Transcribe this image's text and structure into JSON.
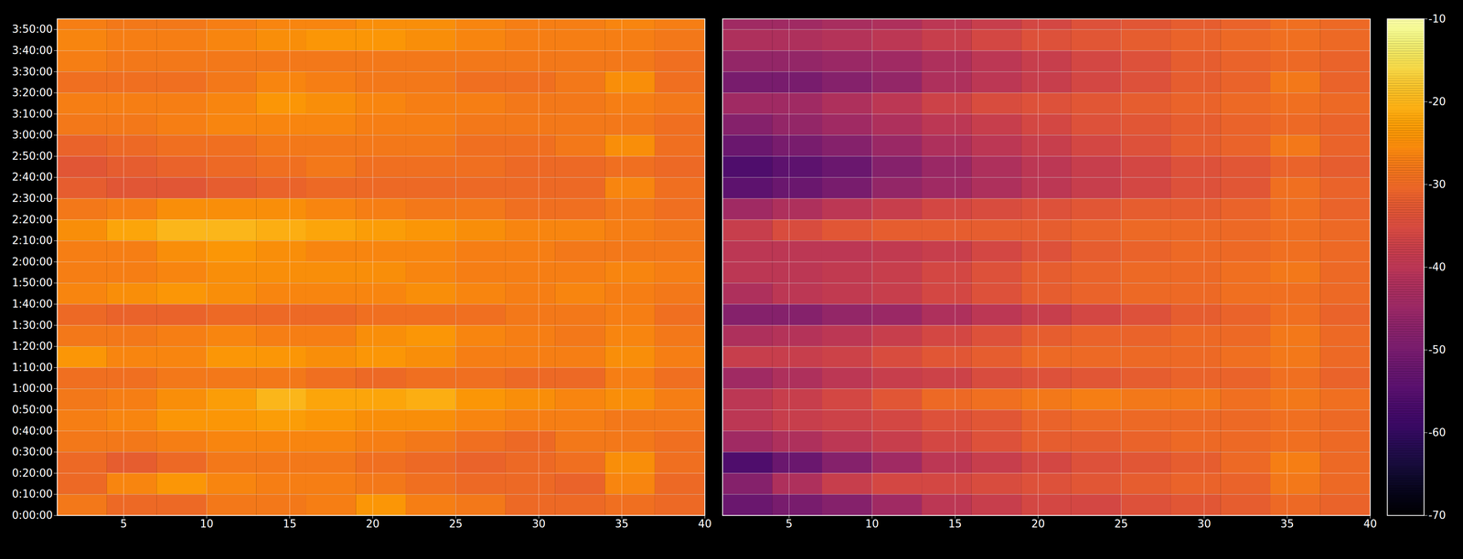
{
  "chart_data": {
    "type": "heatmap",
    "grid": true,
    "xlim": [
      1,
      40
    ],
    "xticks": [
      5,
      10,
      15,
      20,
      25,
      30,
      35,
      40
    ],
    "ylim": [
      0,
      14100
    ],
    "yticks": [
      {
        "value": 0,
        "label": "0:00:00"
      },
      {
        "value": 600,
        "label": "0:10:00"
      },
      {
        "value": 1200,
        "label": "0:20:00"
      },
      {
        "value": 1800,
        "label": "0:30:00"
      },
      {
        "value": 2400,
        "label": "0:40:00"
      },
      {
        "value": 3000,
        "label": "0:50:00"
      },
      {
        "value": 3600,
        "label": "1:00:00"
      },
      {
        "value": 4200,
        "label": "1:10:00"
      },
      {
        "value": 4800,
        "label": "1:20:00"
      },
      {
        "value": 5400,
        "label": "1:30:00"
      },
      {
        "value": 6000,
        "label": "1:40:00"
      },
      {
        "value": 6600,
        "label": "1:50:00"
      },
      {
        "value": 7200,
        "label": "2:00:00"
      },
      {
        "value": 7800,
        "label": "2:10:00"
      },
      {
        "value": 8400,
        "label": "2:20:00"
      },
      {
        "value": 9000,
        "label": "2:30:00"
      },
      {
        "value": 9600,
        "label": "2:40:00"
      },
      {
        "value": 10200,
        "label": "2:50:00"
      },
      {
        "value": 10800,
        "label": "3:00:00"
      },
      {
        "value": 11400,
        "label": "3:10:00"
      },
      {
        "value": 12000,
        "label": "3:20:00"
      },
      {
        "value": 12600,
        "label": "3:30:00"
      },
      {
        "value": 13200,
        "label": "3:40:00"
      },
      {
        "value": 13800,
        "label": "3:50:00"
      }
    ],
    "x_edges": [
      1,
      4,
      7,
      10,
      13,
      16,
      19,
      22,
      25,
      28,
      31,
      34,
      37,
      40
    ],
    "y_edges": [
      0,
      600,
      1200,
      1800,
      2400,
      3000,
      3600,
      4200,
      4800,
      5400,
      6000,
      6600,
      7200,
      7800,
      8400,
      9000,
      9600,
      10200,
      10800,
      11400,
      12000,
      12600,
      13200,
      13800,
      14100
    ],
    "colorbar": {
      "range": [
        -70,
        -10
      ],
      "ticks": [
        -70,
        -60,
        -50,
        -40,
        -30,
        -20,
        -10
      ]
    },
    "panels": [
      {
        "cells": [
          [
            -28,
            -30,
            -30,
            -28,
            -28,
            -27,
            -24,
            -27,
            -28,
            -30,
            -30,
            -29,
            -30
          ],
          [
            -30,
            -26,
            -24,
            -26,
            -27,
            -27,
            -28,
            -29,
            -30,
            -30,
            -31,
            -26,
            -30
          ],
          [
            -30,
            -32,
            -30,
            -28,
            -28,
            -28,
            -29,
            -30,
            -31,
            -30,
            -29,
            -25,
            -29
          ],
          [
            -28,
            -28,
            -27,
            -26,
            -26,
            -26,
            -27,
            -28,
            -29,
            -30,
            -28,
            -28,
            -29
          ],
          [
            -27,
            -26,
            -24,
            -24,
            -23,
            -24,
            -25,
            -25,
            -26,
            -27,
            -27,
            -28,
            -28
          ],
          [
            -28,
            -27,
            -25,
            -23,
            -20,
            -22,
            -22,
            -21,
            -24,
            -25,
            -26,
            -25,
            -27
          ],
          [
            -29,
            -29,
            -28,
            -28,
            -28,
            -29,
            -30,
            -29,
            -29,
            -30,
            -30,
            -27,
            -29
          ],
          [
            -24,
            -26,
            -26,
            -24,
            -24,
            -25,
            -24,
            -25,
            -27,
            -27,
            -27,
            -25,
            -27
          ],
          [
            -28,
            -28,
            -27,
            -26,
            -27,
            -27,
            -25,
            -24,
            -26,
            -27,
            -28,
            -26,
            -28
          ],
          [
            -30,
            -31,
            -31,
            -30,
            -30,
            -30,
            -29,
            -29,
            -29,
            -28,
            -28,
            -27,
            -29
          ],
          [
            -26,
            -25,
            -24,
            -25,
            -26,
            -26,
            -26,
            -25,
            -26,
            -27,
            -26,
            -27,
            -28
          ],
          [
            -27,
            -27,
            -26,
            -25,
            -25,
            -25,
            -25,
            -26,
            -27,
            -27,
            -27,
            -26,
            -27
          ],
          [
            -27,
            -27,
            -25,
            -24,
            -25,
            -26,
            -26,
            -26,
            -27,
            -27,
            -28,
            -28,
            -28
          ],
          [
            -25,
            -22,
            -20,
            -20,
            -21,
            -22,
            -23,
            -24,
            -25,
            -26,
            -26,
            -27,
            -28
          ],
          [
            -28,
            -27,
            -25,
            -25,
            -25,
            -26,
            -27,
            -28,
            -28,
            -29,
            -29,
            -28,
            -29
          ],
          [
            -32,
            -33,
            -33,
            -32,
            -31,
            -30,
            -30,
            -30,
            -30,
            -30,
            -30,
            -26,
            -29
          ],
          [
            -33,
            -32,
            -31,
            -30,
            -29,
            -28,
            -29,
            -29,
            -29,
            -30,
            -30,
            -29,
            -30
          ],
          [
            -31,
            -30,
            -29,
            -29,
            -28,
            -28,
            -28,
            -28,
            -29,
            -29,
            -28,
            -25,
            -29
          ],
          [
            -28,
            -28,
            -27,
            -26,
            -26,
            -26,
            -27,
            -27,
            -28,
            -28,
            -28,
            -28,
            -29
          ],
          [
            -27,
            -27,
            -27,
            -26,
            -24,
            -25,
            -26,
            -27,
            -27,
            -28,
            -28,
            -27,
            -28
          ],
          [
            -29,
            -29,
            -29,
            -28,
            -26,
            -27,
            -28,
            -28,
            -29,
            -29,
            -28,
            -25,
            -29
          ],
          [
            -27,
            -28,
            -28,
            -28,
            -28,
            -28,
            -28,
            -28,
            -28,
            -28,
            -28,
            -28,
            -29
          ],
          [
            -26,
            -27,
            -27,
            -26,
            -25,
            -24,
            -24,
            -25,
            -26,
            -27,
            -27,
            -27,
            -28
          ],
          [
            -27,
            -28,
            -28,
            -27,
            -26,
            -26,
            -25,
            -25,
            -26,
            -27,
            -27,
            -26,
            -27
          ]
        ]
      },
      {
        "cells": [
          [
            -52,
            -50,
            -48,
            -44,
            -40,
            -38,
            -36,
            -36,
            -34,
            -33,
            -32,
            -30,
            -31
          ],
          [
            -48,
            -42,
            -38,
            -36,
            -36,
            -35,
            -34,
            -33,
            -32,
            -31,
            -31,
            -28,
            -30
          ],
          [
            -56,
            -52,
            -48,
            -44,
            -40,
            -38,
            -36,
            -34,
            -33,
            -32,
            -30,
            -27,
            -30
          ],
          [
            -44,
            -42,
            -40,
            -38,
            -36,
            -34,
            -32,
            -32,
            -31,
            -30,
            -30,
            -29,
            -30
          ],
          [
            -40,
            -38,
            -37,
            -36,
            -34,
            -33,
            -31,
            -30,
            -30,
            -30,
            -30,
            -29,
            -30
          ],
          [
            -40,
            -38,
            -36,
            -33,
            -30,
            -29,
            -28,
            -27,
            -28,
            -28,
            -29,
            -28,
            -29
          ],
          [
            -44,
            -42,
            -40,
            -38,
            -37,
            -35,
            -34,
            -33,
            -32,
            -31,
            -31,
            -29,
            -31
          ],
          [
            -38,
            -38,
            -37,
            -35,
            -33,
            -32,
            -30,
            -30,
            -30,
            -30,
            -29,
            -28,
            -30
          ],
          [
            -42,
            -41,
            -40,
            -38,
            -36,
            -34,
            -32,
            -31,
            -31,
            -30,
            -30,
            -28,
            -30
          ],
          [
            -48,
            -48,
            -46,
            -45,
            -42,
            -40,
            -38,
            -36,
            -34,
            -32,
            -31,
            -29,
            -31
          ],
          [
            -42,
            -40,
            -39,
            -38,
            -36,
            -34,
            -32,
            -31,
            -30,
            -30,
            -29,
            -29,
            -30
          ],
          [
            -40,
            -40,
            -39,
            -38,
            -36,
            -34,
            -32,
            -31,
            -30,
            -30,
            -29,
            -28,
            -30
          ],
          [
            -40,
            -40,
            -40,
            -39,
            -38,
            -36,
            -34,
            -32,
            -31,
            -30,
            -30,
            -29,
            -30
          ],
          [
            -38,
            -35,
            -33,
            -32,
            -32,
            -32,
            -32,
            -31,
            -30,
            -30,
            -30,
            -29,
            -30
          ],
          [
            -44,
            -42,
            -40,
            -38,
            -36,
            -35,
            -34,
            -33,
            -32,
            -32,
            -31,
            -29,
            -31
          ],
          [
            -54,
            -52,
            -50,
            -46,
            -44,
            -42,
            -40,
            -38,
            -36,
            -34,
            -33,
            -29,
            -31
          ],
          [
            -56,
            -54,
            -52,
            -48,
            -45,
            -42,
            -40,
            -38,
            -36,
            -34,
            -33,
            -31,
            -32
          ],
          [
            -52,
            -50,
            -48,
            -45,
            -42,
            -40,
            -38,
            -36,
            -34,
            -32,
            -31,
            -28,
            -31
          ],
          [
            -48,
            -46,
            -44,
            -42,
            -40,
            -38,
            -36,
            -34,
            -33,
            -32,
            -31,
            -30,
            -31
          ],
          [
            -44,
            -44,
            -42,
            -40,
            -37,
            -35,
            -34,
            -33,
            -32,
            -31,
            -30,
            -29,
            -30
          ],
          [
            -50,
            -50,
            -48,
            -46,
            -42,
            -40,
            -38,
            -36,
            -34,
            -32,
            -31,
            -28,
            -31
          ],
          [
            -46,
            -46,
            -45,
            -44,
            -42,
            -40,
            -38,
            -36,
            -34,
            -32,
            -31,
            -30,
            -31
          ],
          [
            -42,
            -42,
            -41,
            -40,
            -38,
            -36,
            -34,
            -33,
            -32,
            -31,
            -30,
            -29,
            -30
          ],
          [
            -44,
            -44,
            -43,
            -42,
            -40,
            -38,
            -36,
            -34,
            -33,
            -32,
            -31,
            -29,
            -30
          ]
        ]
      }
    ]
  }
}
